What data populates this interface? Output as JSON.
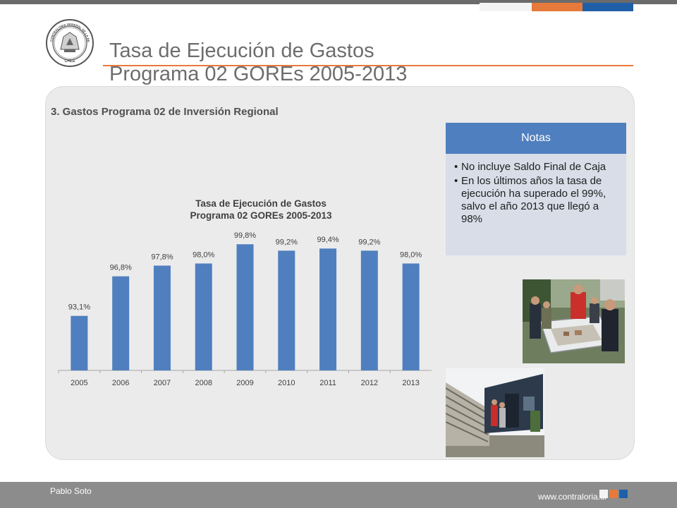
{
  "header": {
    "title_line1": "Tasa de Ejecución de Gastos",
    "title_line2": "Programa 02 GOREs 2005-2013",
    "seal_text": "CONTRALORIA GENERAL DE LA REPUBLICA · CHILE"
  },
  "section_title": "3. Gastos Programa 02 de Inversión Regional",
  "chart_data": {
    "type": "bar",
    "title_line1": "Tasa de Ejecución de Gastos",
    "title_line2": "Programa 02 GOREs 2005-2013",
    "categories": [
      "2005",
      "2006",
      "2007",
      "2008",
      "2009",
      "2010",
      "2011",
      "2012",
      "2013"
    ],
    "values": [
      93.1,
      96.8,
      97.8,
      98.0,
      99.8,
      99.2,
      99.4,
      99.2,
      98.0
    ],
    "data_labels": [
      "93,1%",
      "96,8%",
      "97,8%",
      "98,0%",
      "99,8%",
      "99,2%",
      "99,4%",
      "99,2%",
      "98,0%"
    ],
    "ylim": [
      88,
      101
    ],
    "bar_color": "#4f7fbf",
    "grid": false
  },
  "notes": {
    "header": "Notas",
    "items": [
      "No incluye Saldo Final de Caja",
      "En los últimos años la tasa de ejecución ha superado el 99%, salvo el año 2013 que llegó a 98%"
    ]
  },
  "photos": {
    "photo1_icon": "people-around-model-photo",
    "photo2_icon": "building-bleachers-photo"
  },
  "footer": {
    "author": "Pablo Soto",
    "website": "www.contraloria.cl"
  },
  "colors": {
    "accent_orange": "#e77a3a",
    "accent_blue": "#1f5fa8",
    "bar_blue": "#4f7fbf",
    "footer_gray": "#8c8c8c"
  }
}
